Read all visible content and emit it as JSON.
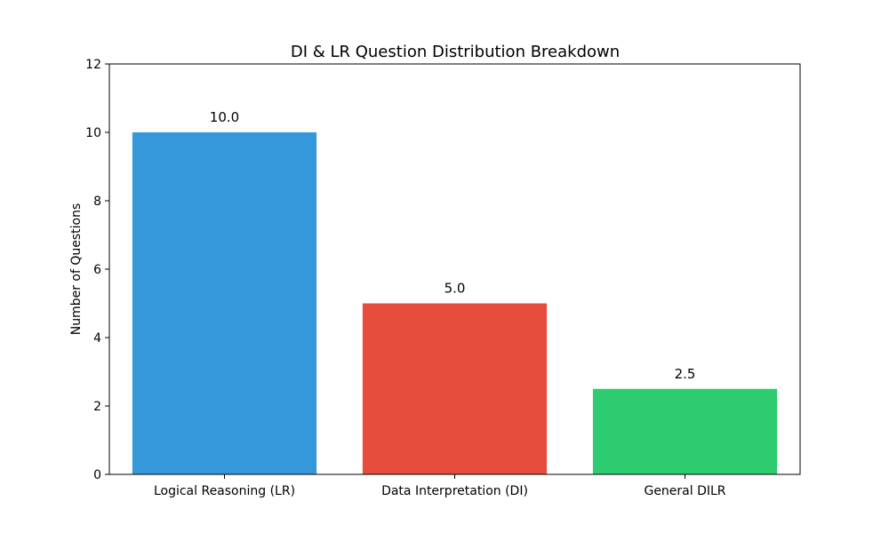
{
  "chart_data": {
    "type": "bar",
    "title": "DI & LR Question Distribution Breakdown",
    "xlabel": "",
    "ylabel": "Number of Questions",
    "categories": [
      "Logical Reasoning (LR)",
      "Data Interpretation (DI)",
      "General DILR"
    ],
    "values": [
      10.0,
      5.0,
      2.5
    ],
    "value_labels": [
      "10.0",
      "5.0",
      "2.5"
    ],
    "colors": [
      "#3498db",
      "#e74c3c",
      "#2ecc71"
    ],
    "ylim": [
      0,
      12
    ],
    "yticks": [
      0,
      2,
      4,
      6,
      8,
      10,
      12
    ],
    "ytick_labels": [
      "0",
      "2",
      "4",
      "6",
      "8",
      "10",
      "12"
    ],
    "grid": false,
    "legend": "none"
  }
}
